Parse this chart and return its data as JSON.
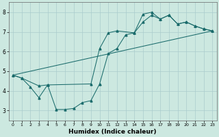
{
  "xlabel": "Humidex (Indice chaleur)",
  "bg_color": "#cce8e0",
  "line_color": "#1a6b6b",
  "grid_color": "#aacccc",
  "xlim": [
    -0.5,
    23.5
  ],
  "ylim": [
    2.5,
    8.5
  ],
  "xticks": [
    0,
    1,
    2,
    3,
    4,
    5,
    6,
    7,
    8,
    9,
    10,
    11,
    12,
    13,
    14,
    15,
    16,
    17,
    18,
    19,
    20,
    21,
    22,
    23
  ],
  "yticks": [
    3,
    4,
    5,
    6,
    7,
    8
  ],
  "line1_x": [
    0,
    1,
    2,
    3,
    4,
    5,
    6,
    7,
    8,
    9,
    10,
    11,
    12,
    13,
    14,
    15,
    16,
    17,
    18,
    19,
    20,
    21,
    22,
    23
  ],
  "line1_y": [
    4.8,
    4.65,
    4.2,
    3.65,
    4.3,
    3.05,
    3.05,
    3.1,
    3.4,
    3.5,
    4.35,
    5.9,
    6.15,
    6.85,
    6.95,
    7.5,
    7.85,
    7.65,
    7.85,
    7.4,
    7.5,
    7.3,
    7.15,
    7.05
  ],
  "line2_x": [
    0,
    1,
    3,
    4,
    9,
    10,
    11,
    12,
    14,
    15,
    16,
    17,
    18,
    19,
    20,
    21,
    22,
    23
  ],
  "line2_y": [
    4.8,
    4.65,
    4.25,
    4.3,
    4.35,
    6.15,
    6.95,
    7.05,
    6.95,
    7.9,
    8.0,
    7.65,
    7.85,
    7.4,
    7.5,
    7.3,
    7.15,
    7.05
  ],
  "line3_x": [
    0,
    23
  ],
  "line3_y": [
    4.8,
    7.05
  ]
}
